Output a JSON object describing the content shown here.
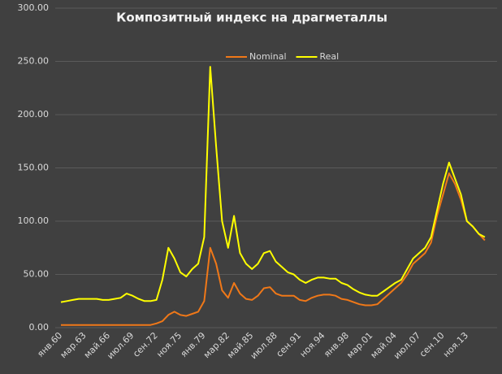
{
  "chart_data": {
    "type": "line",
    "title": "Композитный индекс на драгметаллы",
    "categories": [
      "янв.60",
      null,
      null,
      null,
      "мар.63",
      null,
      null,
      null,
      "май.66",
      null,
      null,
      null,
      "июл.69",
      null,
      null,
      null,
      "сен.72",
      null,
      null,
      null,
      "ноя.75",
      null,
      null,
      null,
      "янв.79",
      null,
      null,
      null,
      "мар.82",
      null,
      null,
      null,
      "май.85",
      null,
      null,
      null,
      "июл.88",
      null,
      null,
      null,
      "сен.91",
      null,
      null,
      null,
      "ноя.94",
      null,
      null,
      null,
      "янв.98",
      null,
      null,
      null,
      "мар.01",
      null,
      null,
      null,
      "май.04",
      null,
      null,
      null,
      "июл.07",
      null,
      null,
      null,
      "сен.10",
      null,
      null,
      null,
      "ноя.13",
      null,
      null,
      null
    ],
    "series": [
      {
        "name": "Nominal",
        "color": "#f07818",
        "values": [
          2.5,
          2.5,
          2.5,
          2.5,
          2.5,
          2.5,
          2.5,
          2.5,
          2.5,
          2.5,
          2.5,
          2.5,
          2.5,
          2.5,
          2.5,
          2.5,
          4,
          6,
          12,
          15,
          12,
          11,
          13,
          15,
          25,
          75,
          60,
          35,
          28,
          42,
          32,
          27,
          26,
          30,
          37,
          38,
          32,
          30,
          30,
          30,
          26,
          25,
          28,
          30,
          31,
          31,
          30,
          27,
          26,
          24,
          22,
          21,
          21,
          22,
          27,
          32,
          37,
          42,
          50,
          60,
          65,
          70,
          80,
          105,
          125,
          145,
          135,
          120,
          100,
          95,
          88,
          82
        ]
      },
      {
        "name": "Real",
        "color": "#ffff00",
        "values": [
          24,
          25,
          26,
          27,
          27,
          27,
          27,
          26,
          26,
          27,
          28,
          32,
          30,
          27,
          25,
          25,
          26,
          45,
          75,
          65,
          52,
          48,
          55,
          60,
          85,
          245,
          170,
          100,
          75,
          105,
          70,
          60,
          55,
          60,
          70,
          72,
          62,
          57,
          52,
          50,
          45,
          42,
          45,
          47,
          47,
          46,
          46,
          42,
          40,
          36,
          33,
          31,
          30,
          30,
          34,
          38,
          42,
          45,
          55,
          65,
          70,
          75,
          85,
          110,
          135,
          155,
          140,
          125,
          100,
          95,
          88,
          85
        ]
      }
    ],
    "ylim": [
      0,
      300
    ],
    "yticks": [
      {
        "value": 0,
        "label": "0.00"
      },
      {
        "value": 50,
        "label": "50.00"
      },
      {
        "value": 100,
        "label": "100.00"
      },
      {
        "value": 150,
        "label": "150.00"
      },
      {
        "value": 200,
        "label": "200.00"
      },
      {
        "value": 250,
        "label": "250.00"
      },
      {
        "value": 300,
        "label": "300.00"
      }
    ],
    "grid": true,
    "legend": "top"
  }
}
